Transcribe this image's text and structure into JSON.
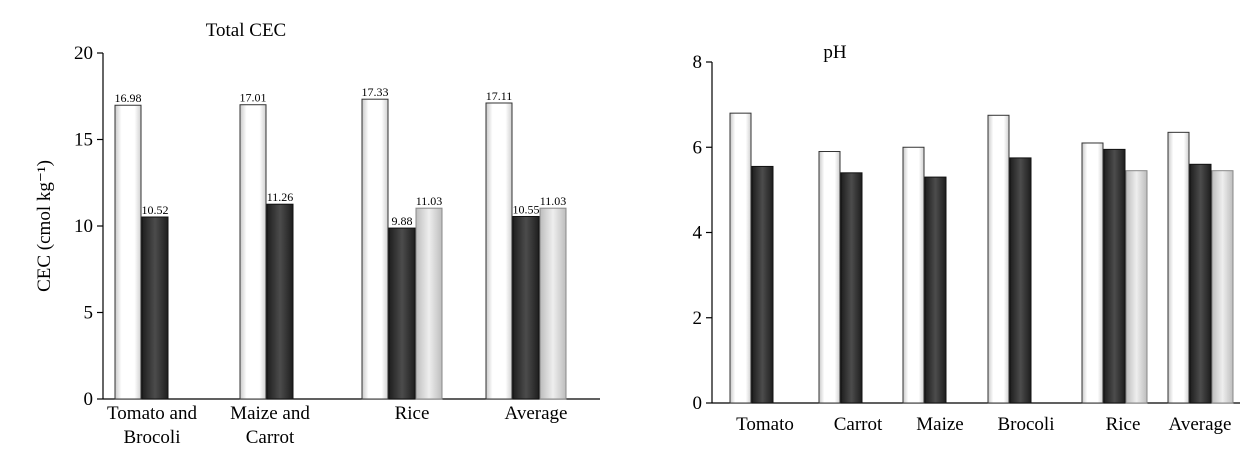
{
  "chart_data": [
    {
      "type": "bar",
      "title": "Total CEC",
      "ylabel": "CEC (cmol kg⁻¹)",
      "xlabel": "",
      "ylim": [
        0,
        20
      ],
      "yticks": [
        "0",
        "5",
        "10",
        "15",
        "20"
      ],
      "categories": [
        [
          "Tomato and",
          "Brocoli"
        ],
        [
          "Maize and",
          "Carrot"
        ],
        [
          "Rice",
          ""
        ],
        [
          "Average",
          ""
        ]
      ],
      "series": [
        {
          "color": "#ffffff",
          "values": [
            16.98,
            17.01,
            17.33,
            17.11
          ],
          "labels": [
            "16.98",
            "17.01",
            "17.33",
            "17.11"
          ]
        },
        {
          "color": "#3a3a3a",
          "values": [
            10.52,
            11.26,
            9.88,
            10.55
          ],
          "labels": [
            "10.52",
            "11.26",
            "9.88",
            "10.55"
          ]
        },
        {
          "color": "#e0e0e0",
          "values": [
            null,
            null,
            11.03,
            11.03
          ],
          "labels": [
            "",
            "",
            "11.03",
            "11.03"
          ]
        }
      ],
      "grid": false,
      "legend": "none"
    },
    {
      "type": "bar",
      "title": "pH",
      "ylabel": "",
      "xlabel": "",
      "ylim": [
        0,
        8
      ],
      "yticks": [
        "0",
        "2",
        "4",
        "6",
        "8"
      ],
      "categories": [
        "Tomato",
        "Carrot",
        "Maize",
        "Brocoli",
        "Rice",
        "Average"
      ],
      "series": [
        {
          "color": "#ffffff",
          "values": [
            6.8,
            5.9,
            6.0,
            6.75,
            6.1,
            6.35
          ]
        },
        {
          "color": "#3a3a3a",
          "values": [
            5.55,
            5.4,
            5.3,
            5.75,
            5.95,
            5.6
          ]
        },
        {
          "color": "#e0e0e0",
          "values": [
            null,
            null,
            null,
            null,
            5.45,
            5.45
          ]
        }
      ],
      "grid": false,
      "legend": "none"
    }
  ]
}
